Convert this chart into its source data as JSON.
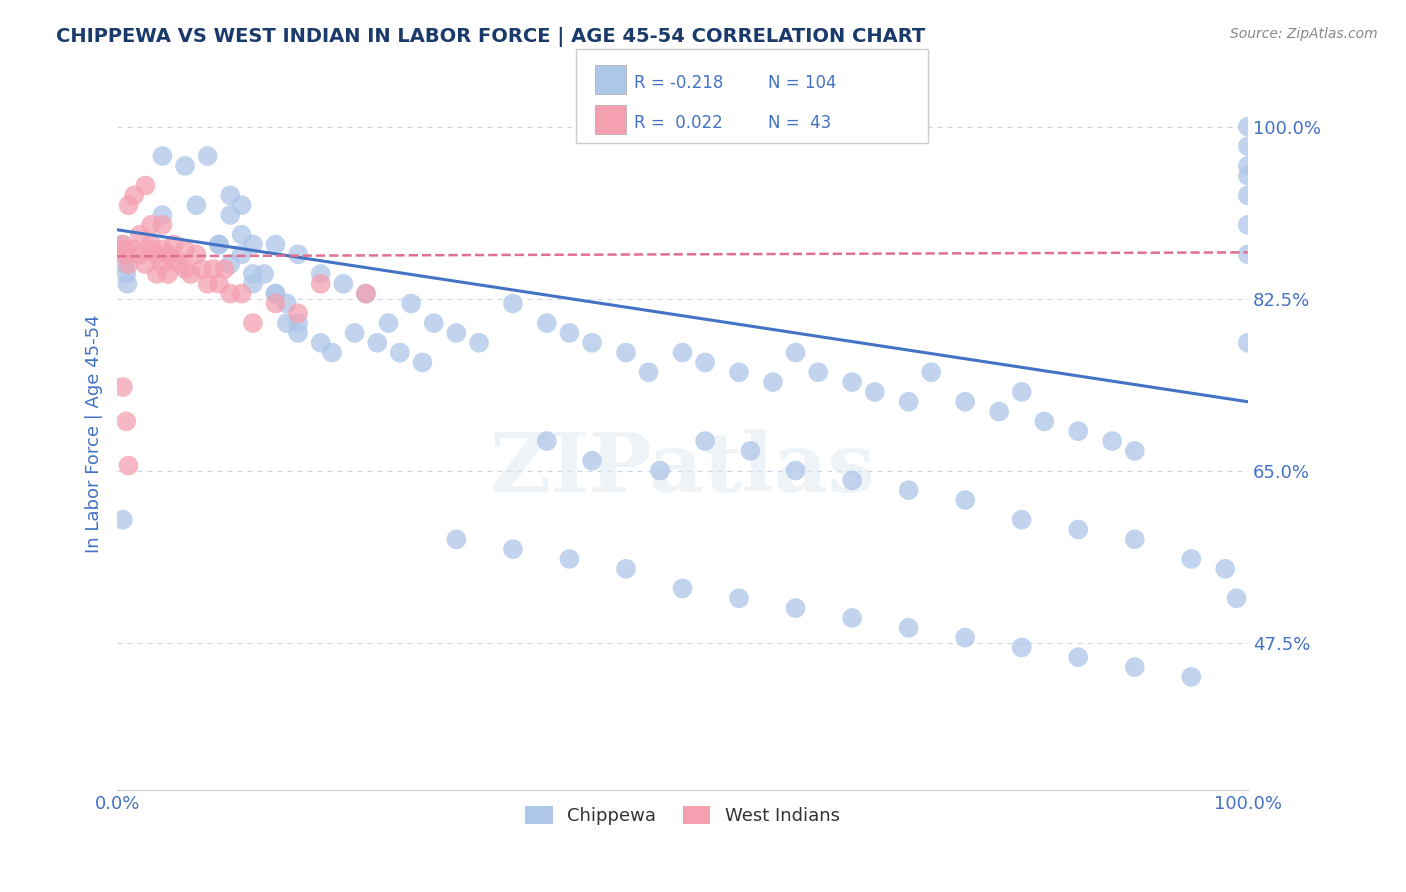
{
  "title": "CHIPPEWA VS WEST INDIAN IN LABOR FORCE | AGE 45-54 CORRELATION CHART",
  "source_text": "Source: ZipAtlas.com",
  "ylabel": "In Labor Force | Age 45-54",
  "xlim": [
    0.0,
    1.0
  ],
  "ylim": [
    0.325,
    1.05
  ],
  "yticks": [
    0.475,
    0.65,
    0.825,
    1.0
  ],
  "ytick_labels": [
    "47.5%",
    "65.0%",
    "82.5%",
    "100.0%"
  ],
  "xticks": [
    0.0,
    1.0
  ],
  "xtick_labels": [
    "0.0%",
    "100.0%"
  ],
  "grid_color": "#c8d8ea",
  "background_color": "#ffffff",
  "chippewa_color": "#aec6e8",
  "west_indian_color": "#f4a0b0",
  "chippewa_line_color": "#4472c4",
  "west_indian_line_color": "#e07090",
  "legend_r_chippewa": "-0.218",
  "legend_n_chippewa": "104",
  "legend_r_west_indian": "0.022",
  "legend_n_west_indian": "43",
  "watermark": "ZIPatlas",
  "title_color": "#1a3a6b",
  "axis_color": "#4472c4",
  "chippewa_x": [
    0.005,
    0.04,
    0.06,
    0.08,
    0.09,
    0.1,
    0.1,
    0.11,
    0.11,
    0.12,
    0.04,
    0.07,
    0.09,
    0.1,
    0.11,
    0.12,
    0.13,
    0.14,
    0.15,
    0.16,
    0.14,
    0.16,
    0.18,
    0.2,
    0.22,
    0.24,
    0.26,
    0.28,
    0.3,
    0.32,
    0.12,
    0.14,
    0.15,
    0.16,
    0.18,
    0.19,
    0.21,
    0.23,
    0.25,
    0.27,
    0.35,
    0.38,
    0.4,
    0.42,
    0.45,
    0.47,
    0.5,
    0.52,
    0.55,
    0.58,
    0.6,
    0.62,
    0.65,
    0.67,
    0.7,
    0.72,
    0.75,
    0.78,
    0.8,
    0.82,
    0.85,
    0.88,
    0.9,
    0.38,
    0.42,
    0.48,
    0.52,
    0.56,
    0.6,
    0.65,
    0.7,
    0.75,
    0.8,
    0.85,
    0.9,
    0.95,
    0.98,
    0.99,
    1.0,
    1.0,
    0.3,
    0.35,
    0.4,
    0.45,
    0.5,
    0.55,
    0.6,
    0.65,
    0.7,
    0.75,
    0.8,
    0.85,
    0.9,
    0.95,
    1.0,
    1.0,
    1.0,
    1.0,
    1.0,
    1.0,
    0.005,
    0.007,
    0.008,
    0.009
  ],
  "chippewa_y": [
    0.6,
    0.97,
    0.96,
    0.97,
    0.88,
    0.91,
    0.93,
    0.89,
    0.92,
    0.88,
    0.91,
    0.92,
    0.88,
    0.86,
    0.87,
    0.84,
    0.85,
    0.83,
    0.82,
    0.8,
    0.88,
    0.87,
    0.85,
    0.84,
    0.83,
    0.8,
    0.82,
    0.8,
    0.79,
    0.78,
    0.85,
    0.83,
    0.8,
    0.79,
    0.78,
    0.77,
    0.79,
    0.78,
    0.77,
    0.76,
    0.82,
    0.8,
    0.79,
    0.78,
    0.77,
    0.75,
    0.77,
    0.76,
    0.75,
    0.74,
    0.77,
    0.75,
    0.74,
    0.73,
    0.72,
    0.75,
    0.72,
    0.71,
    0.73,
    0.7,
    0.69,
    0.68,
    0.67,
    0.68,
    0.66,
    0.65,
    0.68,
    0.67,
    0.65,
    0.64,
    0.63,
    0.62,
    0.6,
    0.59,
    0.58,
    0.56,
    0.55,
    0.52,
    0.78,
    0.95,
    0.58,
    0.57,
    0.56,
    0.55,
    0.53,
    0.52,
    0.51,
    0.5,
    0.49,
    0.48,
    0.47,
    0.46,
    0.45,
    0.44,
    1.0,
    0.98,
    0.96,
    0.93,
    0.9,
    0.87,
    0.88,
    0.86,
    0.85,
    0.84
  ],
  "west_indian_x": [
    0.005,
    0.007,
    0.008,
    0.01,
    0.01,
    0.015,
    0.015,
    0.02,
    0.02,
    0.025,
    0.025,
    0.03,
    0.03,
    0.03,
    0.035,
    0.035,
    0.04,
    0.04,
    0.04,
    0.045,
    0.045,
    0.05,
    0.05,
    0.055,
    0.06,
    0.06,
    0.065,
    0.07,
    0.075,
    0.08,
    0.085,
    0.09,
    0.095,
    0.1,
    0.11,
    0.12,
    0.14,
    0.16,
    0.18,
    0.22,
    0.005,
    0.008,
    0.01
  ],
  "west_indian_y": [
    0.88,
    0.87,
    0.875,
    0.92,
    0.86,
    0.93,
    0.875,
    0.89,
    0.87,
    0.94,
    0.86,
    0.9,
    0.88,
    0.875,
    0.87,
    0.85,
    0.9,
    0.875,
    0.86,
    0.87,
    0.85,
    0.88,
    0.865,
    0.86,
    0.875,
    0.855,
    0.85,
    0.87,
    0.855,
    0.84,
    0.855,
    0.84,
    0.855,
    0.83,
    0.83,
    0.8,
    0.82,
    0.81,
    0.84,
    0.83,
    0.735,
    0.7,
    0.655
  ],
  "chippewa_trend_x": [
    0.0,
    1.0
  ],
  "chippewa_trend_y": [
    0.895,
    0.72
  ],
  "west_indian_trend_x": [
    0.0,
    1.0
  ],
  "west_indian_trend_y": [
    0.868,
    0.872
  ]
}
